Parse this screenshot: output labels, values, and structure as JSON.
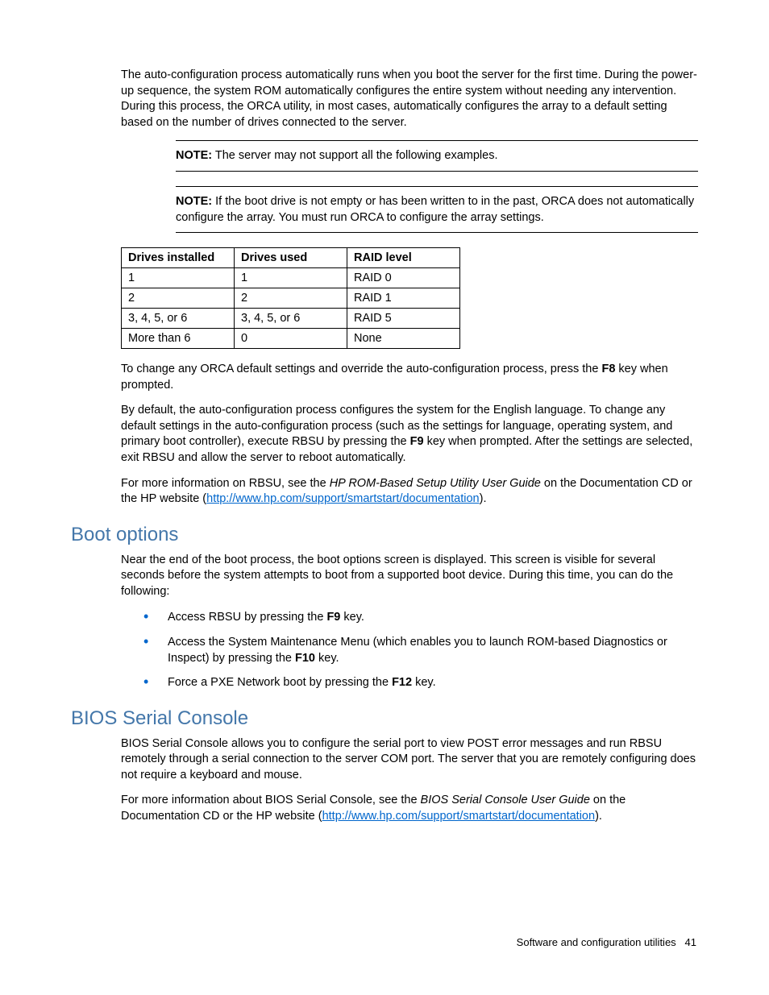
{
  "intro": {
    "para1": "The auto-configuration process automatically runs when you boot the server for the first time. During the power-up sequence, the system ROM automatically configures the entire system without needing any intervention. During this process, the ORCA utility, in most cases, automatically configures the array to a default setting based on the number of drives connected to the server."
  },
  "notes": {
    "label": "NOTE:",
    "note1": "The server may not support all the following examples.",
    "note2": "If the boot drive is not empty or has been written to in the past, ORCA does not automatically configure the array. You must run ORCA to configure the array settings."
  },
  "table": {
    "headers": [
      "Drives installed",
      "Drives used",
      "RAID level"
    ],
    "rows": [
      [
        "1",
        "1",
        "RAID 0"
      ],
      [
        "2",
        "2",
        "RAID 1"
      ],
      [
        "3, 4, 5, or 6",
        "3, 4, 5, or 6",
        "RAID 5"
      ],
      [
        "More than 6",
        "0",
        "None"
      ]
    ]
  },
  "orca": {
    "p1a": "To change any ORCA default settings and override the auto-configuration process, press the ",
    "p1b": "F8",
    "p1c": " key when prompted.",
    "p2a": "By default, the auto-configuration process configures the system for the English language. To change any default settings in the auto-configuration process (such as the settings for language, operating system, and primary boot controller), execute RBSU by pressing the ",
    "p2b": "F9",
    "p2c": " key when prompted. After the settings are selected, exit RBSU and allow the server to reboot automatically.",
    "p3a": "For more information on RBSU, see the ",
    "p3b": "HP ROM-Based Setup Utility User Guide",
    "p3c": " on the Documentation CD or the HP website (",
    "p3link": "http://www.hp.com/support/smartstart/documentation",
    "p3d": ")."
  },
  "boot": {
    "heading": "Boot options",
    "intro": "Near the end of the boot process, the boot options screen is displayed. This screen is visible for several seconds before the system attempts to boot from a supported boot device. During this time, you can do the following:",
    "b1a": "Access RBSU by pressing the ",
    "b1b": "F9",
    "b1c": " key.",
    "b2a": "Access the System Maintenance Menu (which enables you to launch ROM-based Diagnostics or Inspect) by pressing the ",
    "b2b": "F10",
    "b2c": " key.",
    "b3a": "Force a PXE Network boot by pressing the ",
    "b3b": "F12",
    "b3c": " key."
  },
  "bios": {
    "heading": "BIOS Serial Console",
    "p1": "BIOS Serial Console allows you to configure the serial port to view POST error messages and run RBSU remotely through a serial connection to the server COM port. The server that you are remotely configuring does not require a keyboard and mouse.",
    "p2a": "For more information about BIOS Serial Console, see the ",
    "p2b": "BIOS Serial Console User Guide",
    "p2c": " on the Documentation CD or the HP website (",
    "p2link": "http://www.hp.com/support/smartstart/documentation",
    "p2d": ")."
  },
  "footer": {
    "text": "Software and configuration utilities",
    "page": "41"
  }
}
